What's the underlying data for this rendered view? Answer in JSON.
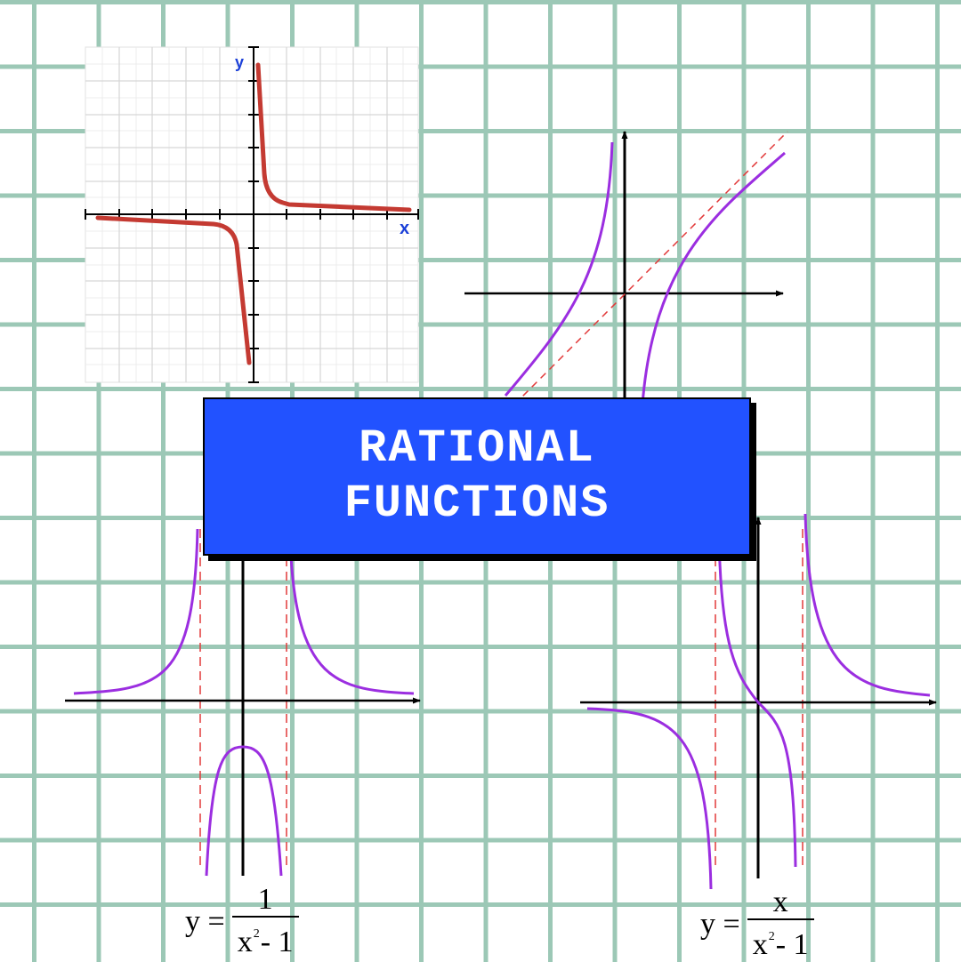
{
  "title": {
    "line1": "RATIONAL",
    "line2": "FUNCTIONS"
  },
  "graph1": {
    "x_label": "x",
    "y_label": "y"
  },
  "formula_left": {
    "lhs": "y =",
    "numerator": "1",
    "den_base": "x",
    "den_exp": "2",
    "den_rest": "- 1"
  },
  "formula_right": {
    "lhs": "y =",
    "numerator": "x",
    "den_base": "x",
    "den_exp": "2",
    "den_rest": "- 1"
  },
  "colors": {
    "grid": "#9cc8b6",
    "title_bg": "#2252ff",
    "curve_red": "#c43a32",
    "curve_purple": "#9b2ee0",
    "asymptote": "#e23a3a",
    "axis_label_blue": "#1a3fd8"
  }
}
